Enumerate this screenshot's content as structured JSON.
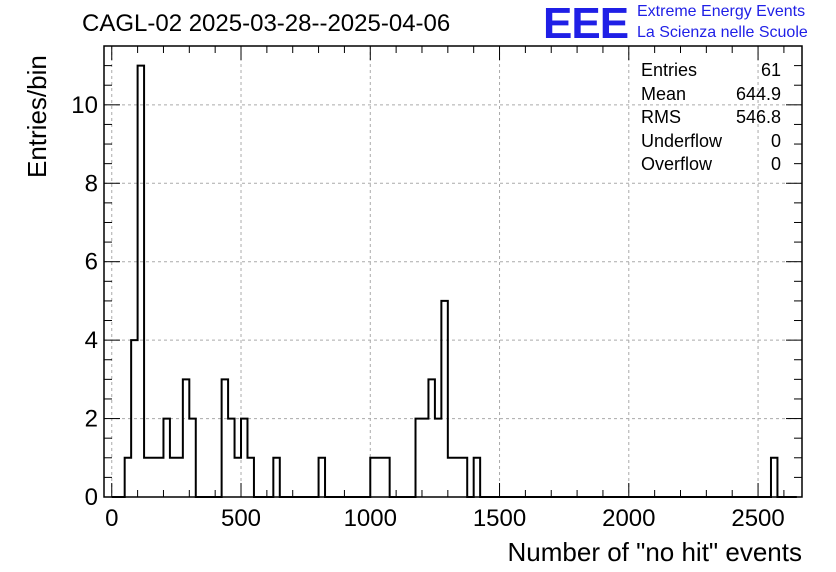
{
  "title": "CAGL-02 2025-03-28--2025-04-06",
  "logo": {
    "mark": "EEE",
    "line1": "Extreme Energy Events",
    "line2": "La Scienza nelle Scuole",
    "color": "#1f1fe6"
  },
  "stats": [
    {
      "key": "Entries",
      "value": "61"
    },
    {
      "key": "Mean",
      "value": "644.9"
    },
    {
      "key": "RMS",
      "value": "546.8"
    },
    {
      "key": "Underflow",
      "value": "0"
    },
    {
      "key": "Overflow",
      "value": "0"
    }
  ],
  "chart_data": {
    "type": "bar",
    "title": "CAGL-02 2025-03-28--2025-04-06",
    "xlabel": "Number of \"no hit\" events",
    "ylabel": "Entries/bin",
    "xlim": [
      -30,
      2670
    ],
    "ylim": [
      0,
      11.5
    ],
    "bin_width": 25,
    "x_ticks": [
      0,
      500,
      1000,
      1500,
      2000,
      2500
    ],
    "y_ticks": [
      0,
      2,
      4,
      6,
      8,
      10
    ],
    "grid": true,
    "bins": [
      {
        "x": 50,
        "y": 1
      },
      {
        "x": 75,
        "y": 4
      },
      {
        "x": 100,
        "y": 11
      },
      {
        "x": 125,
        "y": 1
      },
      {
        "x": 150,
        "y": 1
      },
      {
        "x": 175,
        "y": 1
      },
      {
        "x": 200,
        "y": 2
      },
      {
        "x": 225,
        "y": 1
      },
      {
        "x": 250,
        "y": 1
      },
      {
        "x": 275,
        "y": 3
      },
      {
        "x": 300,
        "y": 2
      },
      {
        "x": 425,
        "y": 3
      },
      {
        "x": 450,
        "y": 2
      },
      {
        "x": 475,
        "y": 1
      },
      {
        "x": 500,
        "y": 2
      },
      {
        "x": 525,
        "y": 1
      },
      {
        "x": 625,
        "y": 1
      },
      {
        "x": 800,
        "y": 1
      },
      {
        "x": 1000,
        "y": 1
      },
      {
        "x": 1025,
        "y": 1
      },
      {
        "x": 1050,
        "y": 1
      },
      {
        "x": 1175,
        "y": 2
      },
      {
        "x": 1200,
        "y": 2
      },
      {
        "x": 1225,
        "y": 3
      },
      {
        "x": 1250,
        "y": 2
      },
      {
        "x": 1275,
        "y": 5
      },
      {
        "x": 1300,
        "y": 1
      },
      {
        "x": 1325,
        "y": 1
      },
      {
        "x": 1350,
        "y": 1
      },
      {
        "x": 1400,
        "y": 1
      },
      {
        "x": 2550,
        "y": 1
      }
    ]
  }
}
